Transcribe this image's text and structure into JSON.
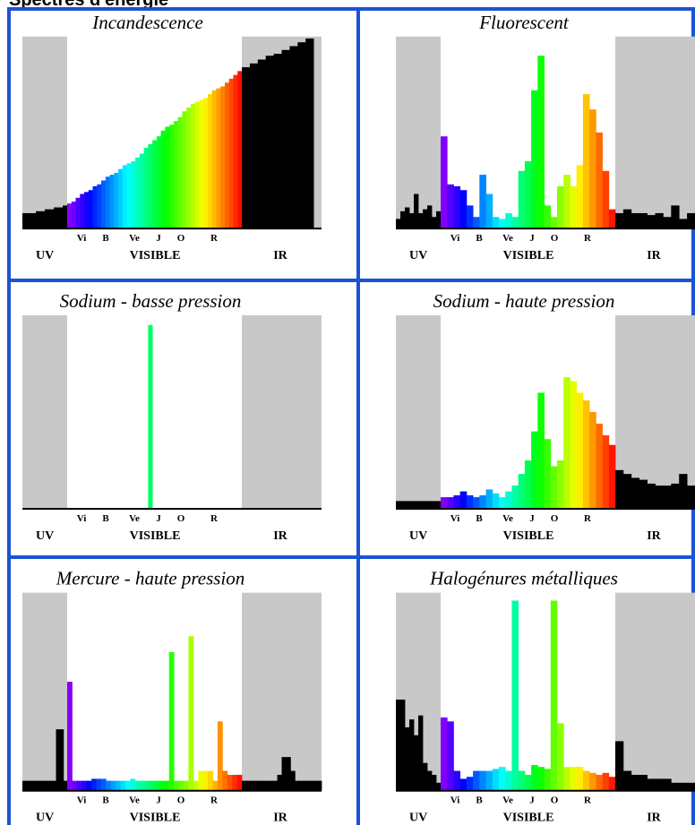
{
  "page_title": "Spectres d'énergie",
  "colors": {
    "grid": "#1c52d6",
    "ir_uv_band": "#c8c8c8",
    "baseline": "#000000"
  },
  "x_labels": {
    "visible_ticks": [
      "Vi",
      "B",
      "Ve",
      "J",
      "O",
      "R"
    ],
    "regions": [
      "UV",
      "VISIBLE",
      "IR"
    ]
  },
  "chart_data": [
    {
      "type": "bar",
      "title": "Incandescence",
      "values": [
        8,
        8,
        8,
        9,
        9,
        10,
        10,
        11,
        11,
        12,
        13,
        14,
        16,
        18,
        19,
        20,
        22,
        23,
        25,
        27,
        28,
        29,
        31,
        33,
        34,
        35,
        37,
        39,
        42,
        44,
        46,
        48,
        51,
        53,
        54,
        56,
        58,
        61,
        63,
        65,
        66,
        67,
        68,
        70,
        72,
        73,
        74,
        76,
        78,
        80,
        82,
        84,
        86,
        88,
        90,
        91,
        93,
        95,
        97,
        99
      ]
    },
    {
      "type": "bar",
      "title": "Fluorescent",
      "values": [
        5,
        9,
        11,
        8,
        18,
        8,
        10,
        12,
        6,
        9,
        48,
        23,
        22,
        20,
        12,
        6,
        28,
        18,
        6,
        5,
        8,
        6,
        30,
        35,
        72,
        90,
        12,
        6,
        22,
        28,
        22,
        33,
        70,
        62,
        50,
        30,
        10,
        8,
        10,
        8,
        8,
        7,
        8,
        6,
        12,
        5,
        8
      ]
    },
    {
      "type": "bar",
      "title": "Sodium - basse pression",
      "values": [
        0,
        0,
        0,
        0,
        0,
        0,
        0,
        0,
        0,
        0,
        0,
        0,
        0,
        0,
        0,
        0,
        0,
        0,
        0,
        0,
        0,
        0,
        0,
        0,
        0,
        0,
        0,
        0,
        0,
        95,
        0,
        0,
        0,
        0,
        0,
        0,
        0,
        0,
        0,
        0,
        0,
        0,
        0,
        0,
        0,
        0,
        0,
        0,
        0,
        0,
        0,
        0,
        0,
        0,
        0,
        0,
        0,
        0,
        0,
        0
      ]
    },
    {
      "type": "bar",
      "title": "Sodium - haute pression",
      "values": [
        4,
        4,
        4,
        4,
        4,
        4,
        4,
        4,
        4,
        4,
        6,
        6,
        7,
        9,
        7,
        6,
        7,
        10,
        8,
        6,
        9,
        12,
        18,
        25,
        40,
        60,
        36,
        22,
        25,
        68,
        66,
        60,
        56,
        50,
        44,
        38,
        33,
        20,
        18,
        16,
        15,
        13,
        12,
        12,
        13,
        18,
        12
      ]
    },
    {
      "type": "bar",
      "title": "Mercure - haute pression",
      "values": [
        5,
        5,
        5,
        5,
        5,
        5,
        5,
        5,
        5,
        31,
        31,
        5,
        55,
        5,
        5,
        5,
        5,
        6,
        6,
        6,
        5,
        5,
        5,
        5,
        5,
        6,
        5,
        5,
        5,
        5,
        5,
        5,
        5,
        70,
        5,
        5,
        5,
        78,
        5,
        10,
        10,
        10,
        5,
        35,
        10,
        8,
        8,
        8,
        5,
        5,
        5,
        5,
        5,
        5,
        5,
        5,
        8,
        17,
        17,
        10,
        5,
        5,
        5,
        5,
        5,
        5
      ]
    },
    {
      "type": "bar",
      "title": "Halogénures métalliques",
      "values": [
        46,
        46,
        32,
        36,
        28,
        38,
        14,
        10,
        8,
        4,
        37,
        35,
        10,
        6,
        7,
        10,
        10,
        10,
        11,
        12,
        10,
        96,
        10,
        8,
        13,
        12,
        11,
        96,
        34,
        12,
        12,
        12,
        10,
        9,
        8,
        9,
        7,
        25,
        10,
        8,
        8,
        6,
        6,
        6,
        4,
        4,
        4
      ]
    }
  ]
}
